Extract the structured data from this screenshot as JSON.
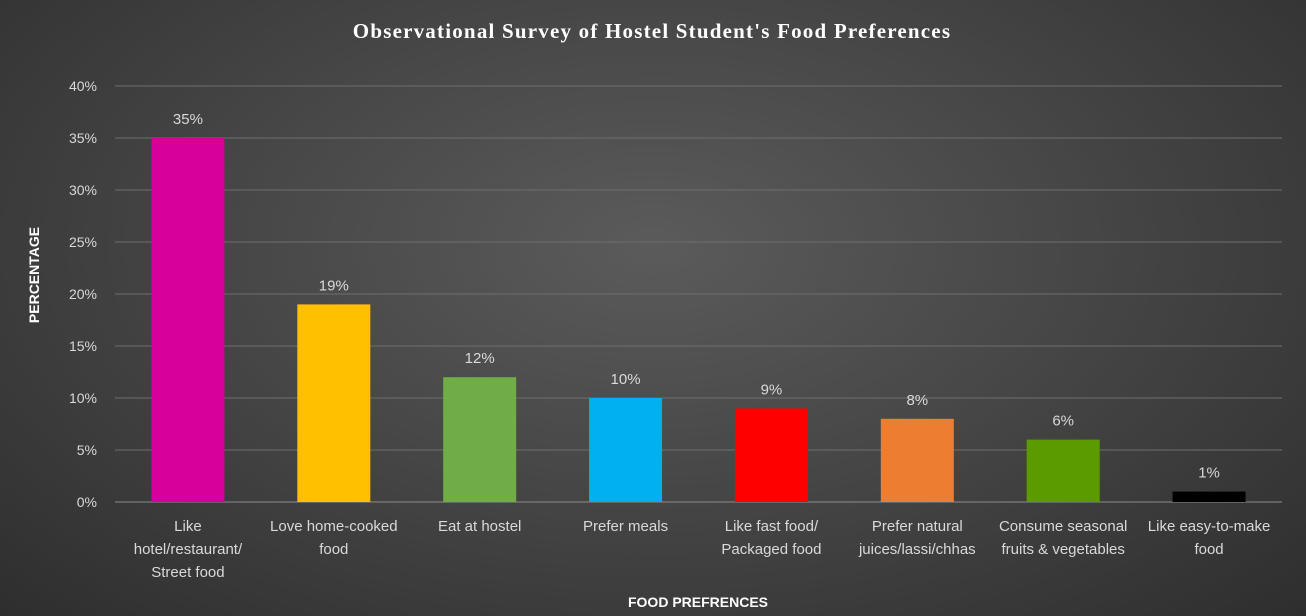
{
  "chart_data": {
    "type": "bar",
    "title": "Observational Survey of Hostel Student's Food Preferences",
    "xlabel": "FOOD PREFRENCES",
    "ylabel": "PERCENTAGE",
    "ylim": [
      0,
      40
    ],
    "ytick_labels": [
      "0%",
      "5%",
      "10%",
      "15%",
      "20%",
      "25%",
      "30%",
      "35%",
      "40%"
    ],
    "grid": true,
    "categories": [
      [
        "Like",
        "hotel/restaurant/",
        "Street food"
      ],
      [
        "Love home-cooked",
        "food"
      ],
      [
        "Eat at hostel"
      ],
      [
        "Prefer meals"
      ],
      [
        "Like fast food/",
        "Packaged food"
      ],
      [
        "Prefer natural",
        "juices/lassi/chhas"
      ],
      [
        "Consume seasonal",
        "fruits & vegetables"
      ],
      [
        "Like easy-to-make",
        "food"
      ]
    ],
    "values": [
      35,
      19,
      12,
      10,
      9,
      8,
      6,
      1
    ],
    "value_labels": [
      "35%",
      "19%",
      "12%",
      "10%",
      "9%",
      "8%",
      "6%",
      "1%"
    ],
    "colors": [
      "#d6009a",
      "#ffc000",
      "#70ad47",
      "#00b0f0",
      "#ff0000",
      "#ed7d31",
      "#5b9b00",
      "#000000"
    ]
  }
}
